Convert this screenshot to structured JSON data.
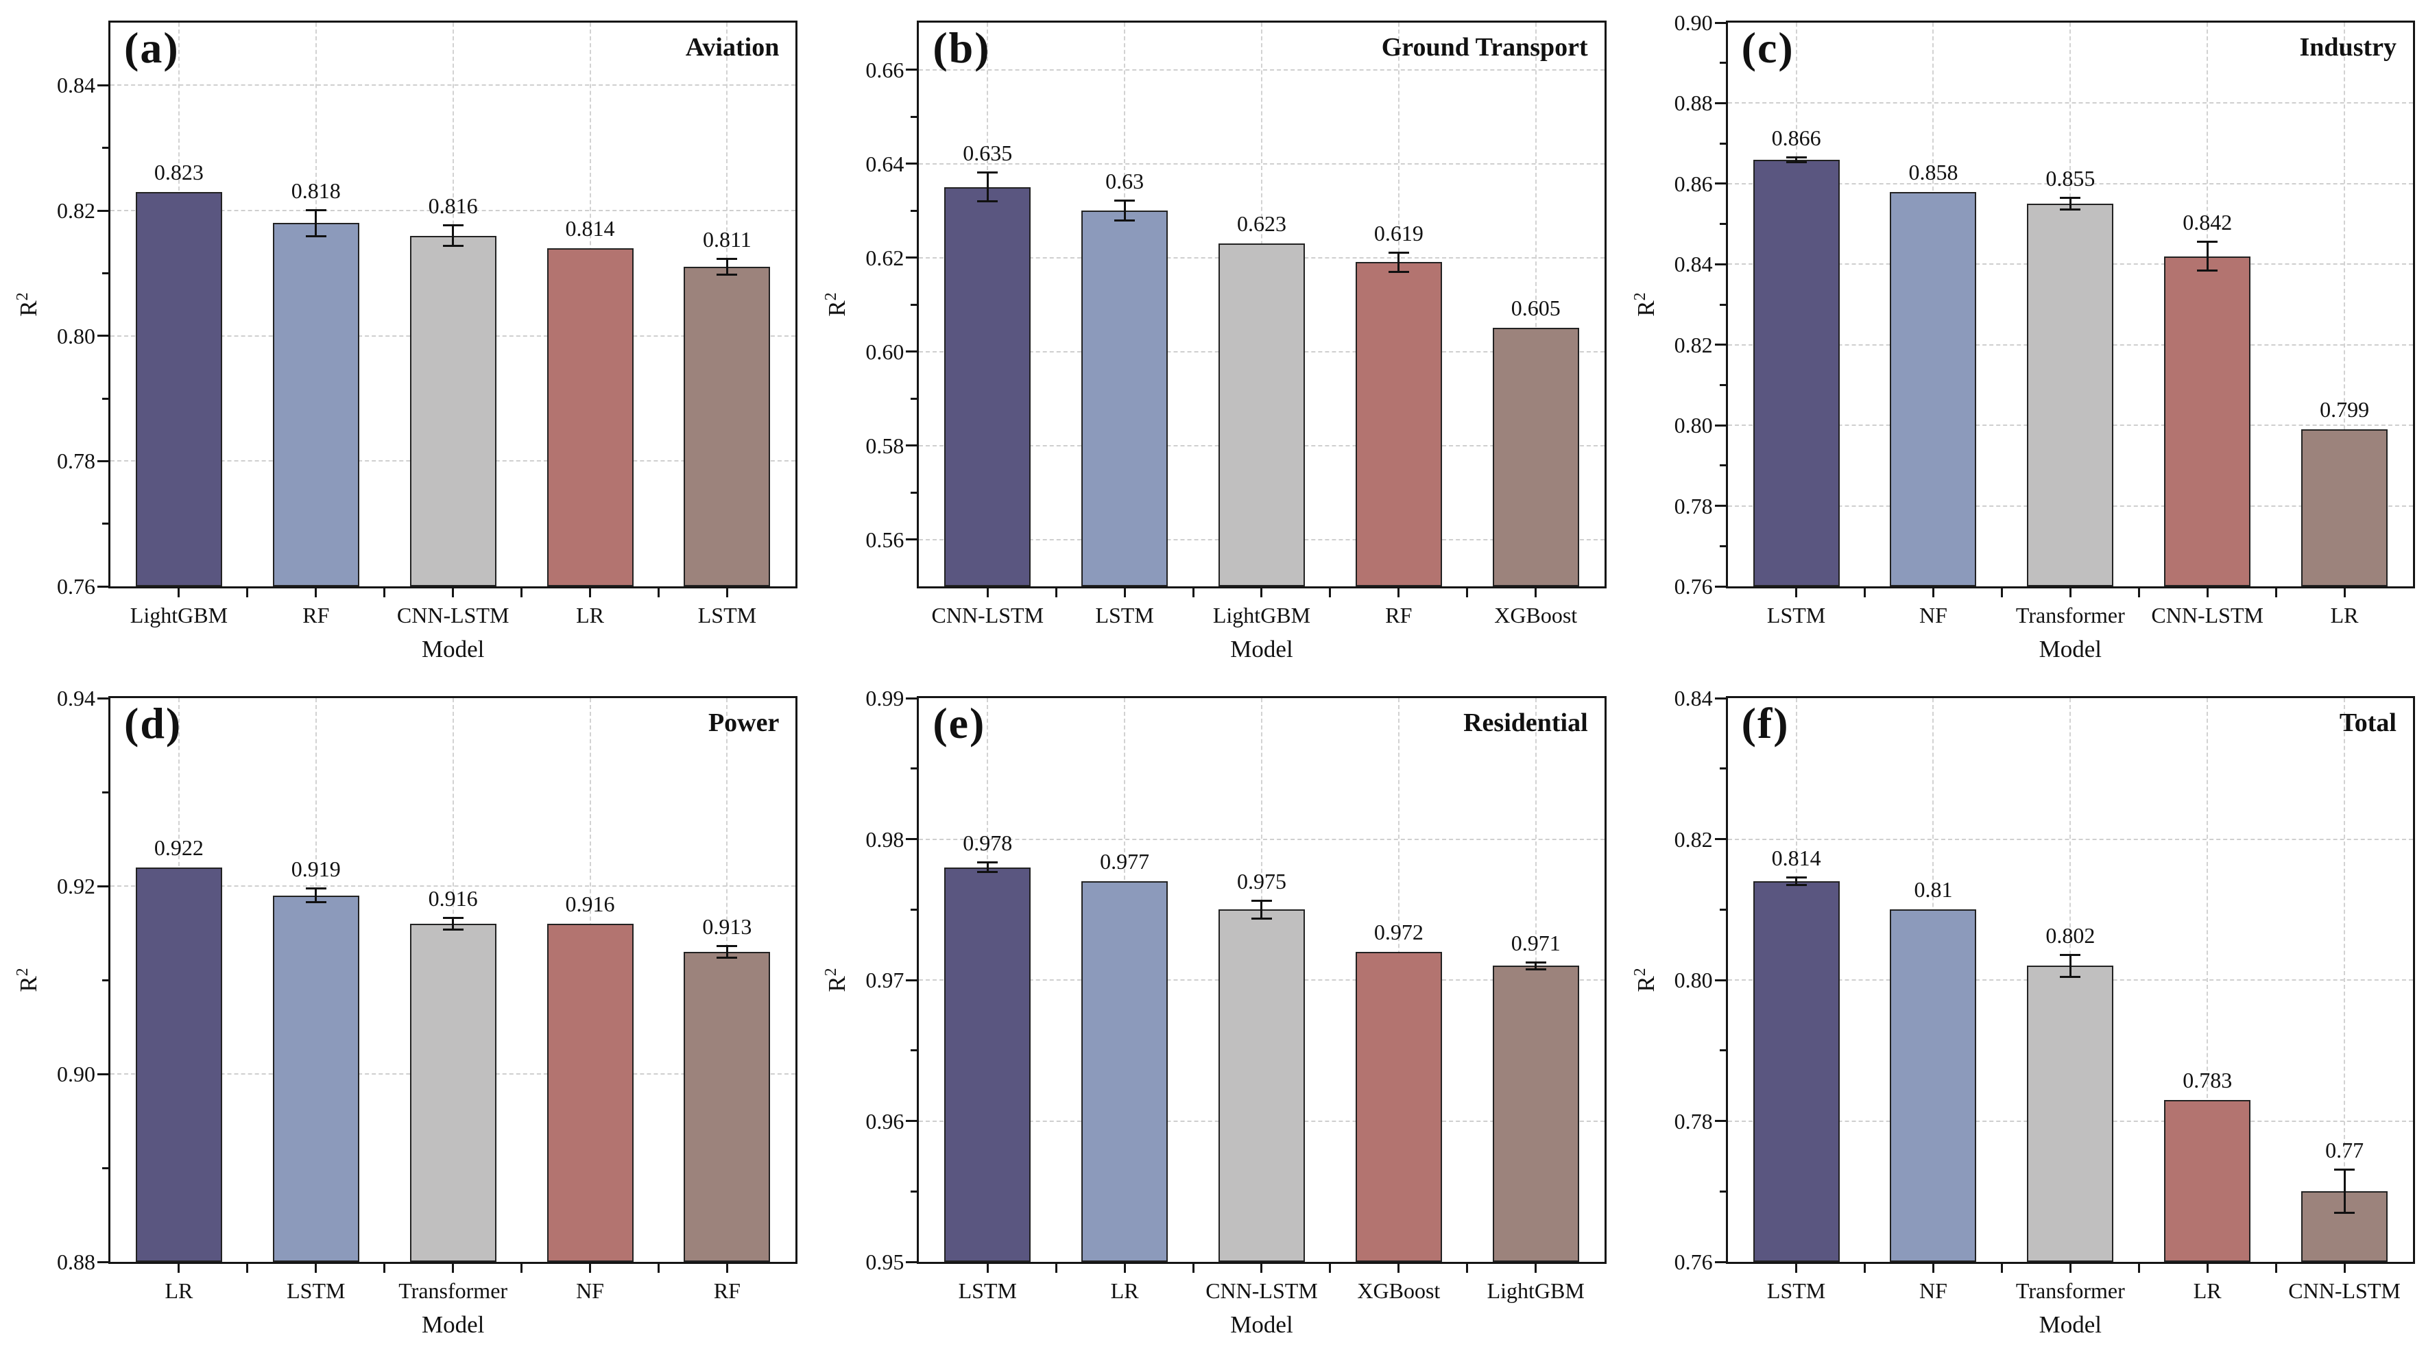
{
  "figure": {
    "xlabel": "Model",
    "ylabel_base": "R",
    "ylabel_sup": "2"
  },
  "style": {
    "bar_colors": [
      "#5a5680",
      "#8c9abb",
      "#c0bfbf",
      "#b37470",
      "#9c837c"
    ],
    "bar_border": "#222222",
    "axis_color": "#151515",
    "grid_color": "#cfcfcf"
  },
  "chart_data": [
    {
      "type": "bar",
      "panel_letter": "(a)",
      "title": "Aviation",
      "xlabel": "Model",
      "ylabel": "R2",
      "categories": [
        "LightGBM",
        "RF",
        "CNN-LSTM",
        "LR",
        "LSTM"
      ],
      "values": [
        0.823,
        0.818,
        0.816,
        0.814,
        0.811
      ],
      "value_labels": [
        "0.823",
        "0.818",
        "0.816",
        "0.814",
        "0.811"
      ],
      "errors": [
        0,
        0.002,
        0.0016,
        0,
        0.0012
      ],
      "ylim": [
        0.76,
        0.85
      ],
      "yticks": [
        0.76,
        0.78,
        0.8,
        0.82,
        0.84
      ],
      "ytick_labels": [
        "0.76",
        "0.78",
        "0.80",
        "0.82",
        "0.84"
      ],
      "grid": true
    },
    {
      "type": "bar",
      "panel_letter": "(b)",
      "title": "Ground Transport",
      "xlabel": "Model",
      "ylabel": "R2",
      "categories": [
        "CNN-LSTM",
        "LSTM",
        "LightGBM",
        "RF",
        "XGBoost"
      ],
      "values": [
        0.635,
        0.63,
        0.623,
        0.619,
        0.605
      ],
      "value_labels": [
        "0.635",
        "0.63",
        "0.623",
        "0.619",
        "0.605"
      ],
      "errors": [
        0.003,
        0.002,
        0,
        0.002,
        0
      ],
      "ylim": [
        0.55,
        0.67
      ],
      "yticks": [
        0.56,
        0.58,
        0.6,
        0.62,
        0.64,
        0.66
      ],
      "ytick_labels": [
        "0.56",
        "0.58",
        "0.60",
        "0.62",
        "0.64",
        "0.66"
      ],
      "grid": true
    },
    {
      "type": "bar",
      "panel_letter": "(c)",
      "title": "Industry",
      "xlabel": "Model",
      "ylabel": "R2",
      "categories": [
        "LSTM",
        "NF",
        "Transformer",
        "CNN-LSTM",
        "LR"
      ],
      "values": [
        0.866,
        0.858,
        0.855,
        0.842,
        0.799
      ],
      "value_labels": [
        "0.866",
        "0.858",
        "0.855",
        "0.842",
        "0.799"
      ],
      "errors": [
        0.0005,
        0,
        0.0014,
        0.0035,
        0
      ],
      "ylim": [
        0.76,
        0.9
      ],
      "yticks": [
        0.76,
        0.78,
        0.8,
        0.82,
        0.84,
        0.86,
        0.88,
        0.9
      ],
      "ytick_labels": [
        "0.76",
        "0.78",
        "0.80",
        "0.82",
        "0.84",
        "0.86",
        "0.88",
        "0.90"
      ],
      "grid": true
    },
    {
      "type": "bar",
      "panel_letter": "(d)",
      "title": "Power",
      "xlabel": "Model",
      "ylabel": "R2",
      "categories": [
        "LR",
        "LSTM",
        "Transformer",
        "NF",
        "RF"
      ],
      "values": [
        0.922,
        0.919,
        0.916,
        0.916,
        0.913
      ],
      "value_labels": [
        "0.922",
        "0.919",
        "0.916",
        "0.916",
        "0.913"
      ],
      "errors": [
        0,
        0.0007,
        0.0006,
        0,
        0.0006
      ],
      "ylim": [
        0.88,
        0.94
      ],
      "yticks": [
        0.88,
        0.9,
        0.92,
        0.94
      ],
      "ytick_labels": [
        "0.88",
        "0.90",
        "0.92",
        "0.94"
      ],
      "grid": true
    },
    {
      "type": "bar",
      "panel_letter": "(e)",
      "title": "Residential",
      "xlabel": "Model",
      "ylabel": "R2",
      "categories": [
        "LSTM",
        "LR",
        "CNN-LSTM",
        "XGBoost",
        "LightGBM"
      ],
      "values": [
        0.978,
        0.977,
        0.975,
        0.972,
        0.971
      ],
      "value_labels": [
        "0.978",
        "0.977",
        "0.975",
        "0.972",
        "0.971"
      ],
      "errors": [
        0.0003,
        0,
        0.0006,
        0,
        0.0002
      ],
      "ylim": [
        0.95,
        0.99
      ],
      "yticks": [
        0.95,
        0.96,
        0.97,
        0.98,
        0.99
      ],
      "ytick_labels": [
        "0.95",
        "0.96",
        "0.97",
        "0.98",
        "0.99"
      ],
      "grid": true
    },
    {
      "type": "bar",
      "panel_letter": "(f)",
      "title": "Total",
      "xlabel": "Model",
      "ylabel": "R2",
      "categories": [
        "LSTM",
        "NF",
        "Transformer",
        "LR",
        "CNN-LSTM"
      ],
      "values": [
        0.814,
        0.81,
        0.802,
        0.783,
        0.77
      ],
      "value_labels": [
        "0.814",
        "0.81",
        "0.802",
        "0.783",
        "0.77"
      ],
      "errors": [
        0.0005,
        0,
        0.0015,
        0,
        0.003
      ],
      "ylim": [
        0.76,
        0.84
      ],
      "yticks": [
        0.76,
        0.78,
        0.8,
        0.82,
        0.84
      ],
      "ytick_labels": [
        "0.76",
        "0.78",
        "0.80",
        "0.82",
        "0.84"
      ],
      "grid": true
    }
  ]
}
